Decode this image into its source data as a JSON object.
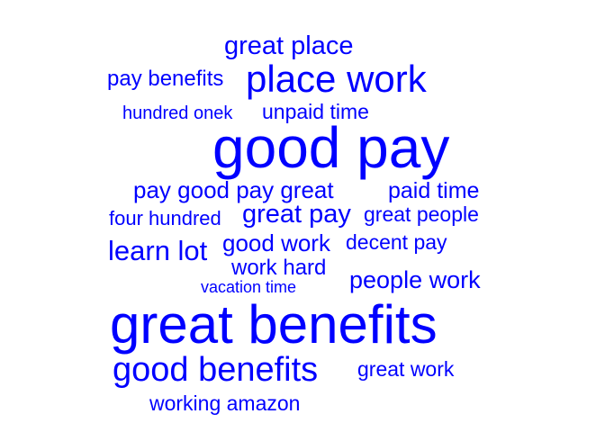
{
  "word_cloud": {
    "color": "#0000ff",
    "words": [
      {
        "text": "great place"
      },
      {
        "text": "pay benefits"
      },
      {
        "text": "place work"
      },
      {
        "text": "hundred onek"
      },
      {
        "text": "unpaid time"
      },
      {
        "text": "good pay"
      },
      {
        "text": "pay good pay great"
      },
      {
        "text": "paid time"
      },
      {
        "text": "four hundred"
      },
      {
        "text": "great pay"
      },
      {
        "text": "great people"
      },
      {
        "text": "learn lot"
      },
      {
        "text": "good work"
      },
      {
        "text": "decent pay"
      },
      {
        "text": "work hard"
      },
      {
        "text": "people work"
      },
      {
        "text": "vacation time"
      },
      {
        "text": "great benefits"
      },
      {
        "text": "good benefits"
      },
      {
        "text": "great work"
      },
      {
        "text": "working amazon"
      }
    ]
  }
}
